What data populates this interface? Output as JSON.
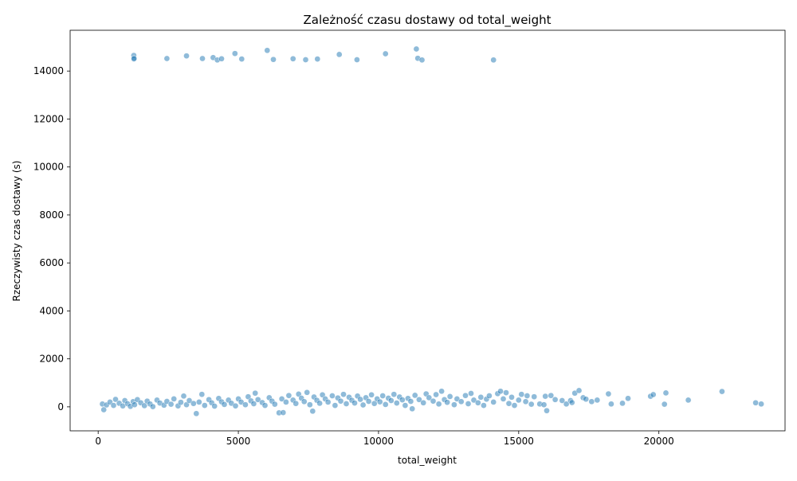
{
  "chart_data": {
    "type": "scatter",
    "title": "Zależność czasu dostawy od total_weight",
    "xlabel": "total_weight",
    "ylabel": "Rzeczywisty czas dostawy (s)",
    "xlim": [
      -1000,
      24500
    ],
    "ylim": [
      -1000,
      15700
    ],
    "xticks": [
      0,
      5000,
      10000,
      15000,
      20000
    ],
    "xtick_labels": [
      "0",
      "5000",
      "10000",
      "15000",
      "20000"
    ],
    "yticks": [
      0,
      2000,
      4000,
      6000,
      8000,
      10000,
      12000,
      14000
    ],
    "ytick_labels": [
      "0",
      "2000",
      "4000",
      "6000",
      "8000",
      "10000",
      "12000",
      "14000"
    ],
    "grid": false,
    "legend": "none",
    "point_color": "#1f77b4",
    "series": [
      {
        "points": [
          [
            1270,
            14650
          ],
          [
            1270,
            14500
          ],
          [
            1280,
            14520
          ],
          [
            2450,
            14520
          ],
          [
            3150,
            14630
          ],
          [
            3720,
            14520
          ],
          [
            4100,
            14560
          ],
          [
            4250,
            14460
          ],
          [
            4400,
            14510
          ],
          [
            4880,
            14730
          ],
          [
            5120,
            14500
          ],
          [
            6030,
            14860
          ],
          [
            6250,
            14480
          ],
          [
            6950,
            14510
          ],
          [
            7400,
            14470
          ],
          [
            7820,
            14500
          ],
          [
            8600,
            14690
          ],
          [
            9230,
            14470
          ],
          [
            10250,
            14720
          ],
          [
            11350,
            14920
          ],
          [
            11400,
            14530
          ],
          [
            11550,
            14460
          ],
          [
            14100,
            14460
          ],
          [
            200,
            -120
          ],
          [
            150,
            120
          ],
          [
            300,
            80
          ],
          [
            420,
            200
          ],
          [
            550,
            60
          ],
          [
            620,
            310
          ],
          [
            750,
            150
          ],
          [
            880,
            40
          ],
          [
            950,
            260
          ],
          [
            1050,
            130
          ],
          [
            1150,
            20
          ],
          [
            1250,
            220
          ],
          [
            1300,
            90
          ],
          [
            1400,
            300
          ],
          [
            1520,
            170
          ],
          [
            1650,
            50
          ],
          [
            1750,
            240
          ],
          [
            1850,
            120
          ],
          [
            1950,
            10
          ],
          [
            2100,
            280
          ],
          [
            2200,
            160
          ],
          [
            2350,
            70
          ],
          [
            2450,
            230
          ],
          [
            2600,
            110
          ],
          [
            2700,
            330
          ],
          [
            2850,
            40
          ],
          [
            2950,
            190
          ],
          [
            3050,
            450
          ],
          [
            3150,
            90
          ],
          [
            3250,
            260
          ],
          [
            3400,
            140
          ],
          [
            3500,
            -280
          ],
          [
            3600,
            200
          ],
          [
            3700,
            520
          ],
          [
            3800,
            60
          ],
          [
            3950,
            300
          ],
          [
            4050,
            170
          ],
          [
            4150,
            30
          ],
          [
            4300,
            350
          ],
          [
            4400,
            210
          ],
          [
            4500,
            100
          ],
          [
            4650,
            280
          ],
          [
            4750,
            150
          ],
          [
            4900,
            40
          ],
          [
            5000,
            330
          ],
          [
            5100,
            200
          ],
          [
            5250,
            90
          ],
          [
            5350,
            420
          ],
          [
            5450,
            250
          ],
          [
            5550,
            130
          ],
          [
            5600,
            570
          ],
          [
            5700,
            300
          ],
          [
            5850,
            180
          ],
          [
            5950,
            60
          ],
          [
            6100,
            380
          ],
          [
            6200,
            240
          ],
          [
            6300,
            110
          ],
          [
            6450,
            -250
          ],
          [
            6550,
            330
          ],
          [
            6600,
            -240
          ],
          [
            6700,
            200
          ],
          [
            6800,
            470
          ],
          [
            6950,
            280
          ],
          [
            7050,
            140
          ],
          [
            7150,
            530
          ],
          [
            7250,
            360
          ],
          [
            7350,
            220
          ],
          [
            7450,
            600
          ],
          [
            7550,
            90
          ],
          [
            7650,
            -180
          ],
          [
            7700,
            410
          ],
          [
            7800,
            270
          ],
          [
            7900,
            150
          ],
          [
            8000,
            500
          ],
          [
            8100,
            330
          ],
          [
            8200,
            200
          ],
          [
            8350,
            460
          ],
          [
            8450,
            60
          ],
          [
            8550,
            370
          ],
          [
            8650,
            240
          ],
          [
            8750,
            520
          ],
          [
            8850,
            130
          ],
          [
            8950,
            400
          ],
          [
            9050,
            270
          ],
          [
            9150,
            160
          ],
          [
            9250,
            450
          ],
          [
            9350,
            310
          ],
          [
            9450,
            80
          ],
          [
            9550,
            380
          ],
          [
            9650,
            230
          ],
          [
            9750,
            500
          ],
          [
            9850,
            140
          ],
          [
            9950,
            330
          ],
          [
            10050,
            210
          ],
          [
            10150,
            460
          ],
          [
            10250,
            100
          ],
          [
            10350,
            360
          ],
          [
            10450,
            260
          ],
          [
            10550,
            520
          ],
          [
            10650,
            160
          ],
          [
            10750,
            410
          ],
          [
            10850,
            290
          ],
          [
            10950,
            60
          ],
          [
            11050,
            350
          ],
          [
            11150,
            230
          ],
          [
            11200,
            -80
          ],
          [
            11300,
            480
          ],
          [
            11450,
            300
          ],
          [
            11600,
            170
          ],
          [
            11700,
            540
          ],
          [
            11800,
            380
          ],
          [
            11950,
            240
          ],
          [
            12050,
            510
          ],
          [
            12150,
            120
          ],
          [
            12250,
            650
          ],
          [
            12350,
            300
          ],
          [
            12450,
            190
          ],
          [
            12550,
            430
          ],
          [
            12700,
            90
          ],
          [
            12800,
            330
          ],
          [
            12950,
            220
          ],
          [
            13100,
            470
          ],
          [
            13200,
            130
          ],
          [
            13300,
            560
          ],
          [
            13400,
            280
          ],
          [
            13550,
            170
          ],
          [
            13650,
            400
          ],
          [
            13750,
            60
          ],
          [
            13850,
            320
          ],
          [
            13950,
            460
          ],
          [
            14100,
            200
          ],
          [
            14250,
            550
          ],
          [
            14350,
            650
          ],
          [
            14450,
            330
          ],
          [
            14550,
            590
          ],
          [
            14650,
            140
          ],
          [
            14750,
            400
          ],
          [
            14850,
            60
          ],
          [
            15000,
            280
          ],
          [
            15100,
            520
          ],
          [
            15250,
            220
          ],
          [
            15300,
            460
          ],
          [
            15450,
            110
          ],
          [
            15550,
            420
          ],
          [
            15750,
            120
          ],
          [
            15900,
            90
          ],
          [
            15950,
            440
          ],
          [
            16000,
            -160
          ],
          [
            16150,
            470
          ],
          [
            16300,
            300
          ],
          [
            16550,
            260
          ],
          [
            16700,
            120
          ],
          [
            16850,
            260
          ],
          [
            16900,
            180
          ],
          [
            17000,
            570
          ],
          [
            17150,
            680
          ],
          [
            17300,
            380
          ],
          [
            17400,
            320
          ],
          [
            17600,
            220
          ],
          [
            17800,
            280
          ],
          [
            18200,
            540
          ],
          [
            18300,
            120
          ],
          [
            18700,
            150
          ],
          [
            18900,
            350
          ],
          [
            19700,
            440
          ],
          [
            19800,
            510
          ],
          [
            20200,
            110
          ],
          [
            20250,
            580
          ],
          [
            21050,
            280
          ],
          [
            22250,
            640
          ],
          [
            23450,
            170
          ],
          [
            23650,
            120
          ]
        ]
      }
    ]
  }
}
